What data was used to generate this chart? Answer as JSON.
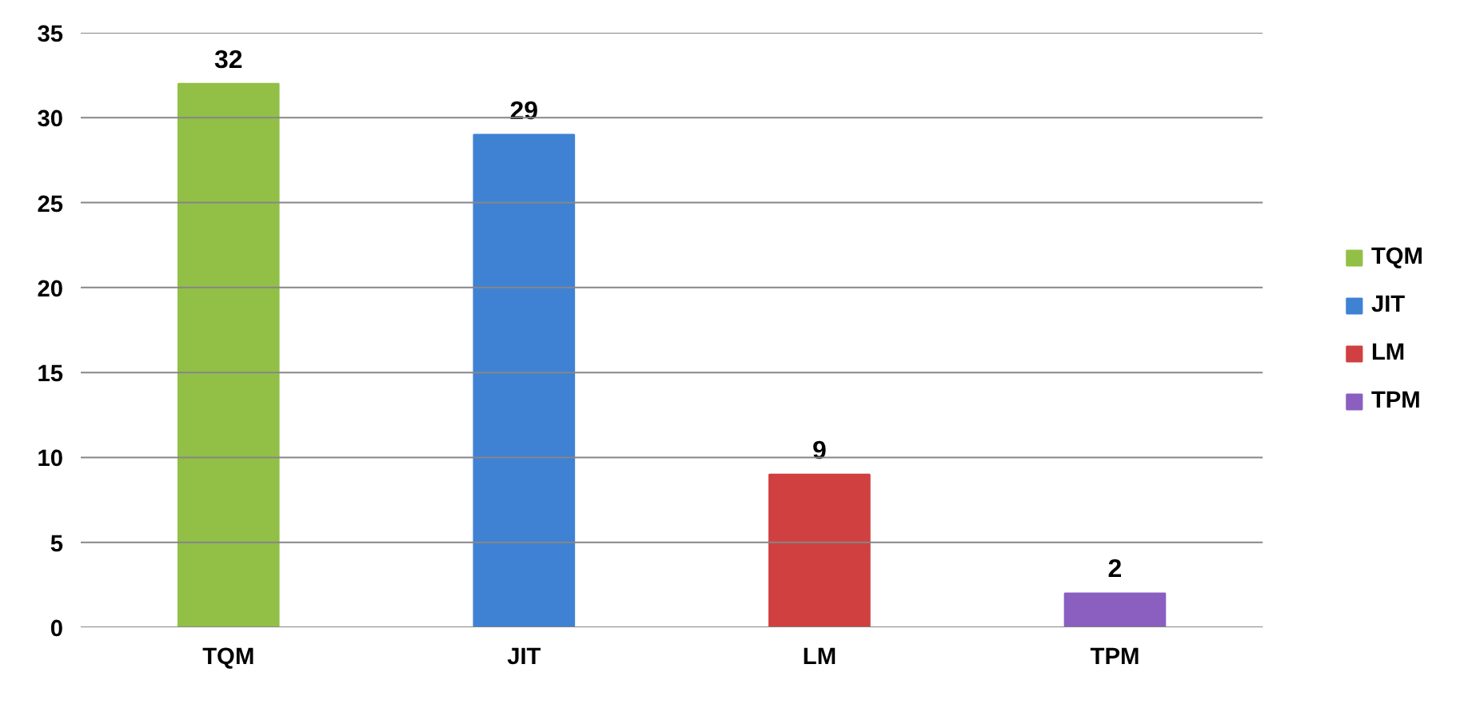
{
  "chart_data": {
    "type": "bar",
    "categories": [
      "TQM",
      "JIT",
      "LM",
      "TPM"
    ],
    "series": [
      {
        "name": "TQM",
        "color": "#92c047",
        "values": [
          32,
          null,
          null,
          null
        ]
      },
      {
        "name": "JIT",
        "color": "#3f82d4",
        "values": [
          null,
          29,
          null,
          null
        ]
      },
      {
        "name": "LM",
        "color": "#d04040",
        "values": [
          null,
          null,
          9,
          null
        ]
      },
      {
        "name": "TPM",
        "color": "#8a5fc0",
        "values": [
          null,
          null,
          null,
          2
        ]
      }
    ],
    "ylim": [
      0,
      35
    ],
    "yticks": [
      0,
      5,
      10,
      15,
      20,
      25,
      30,
      35
    ],
    "grid": "y",
    "legend": "right",
    "data_labels": true
  }
}
